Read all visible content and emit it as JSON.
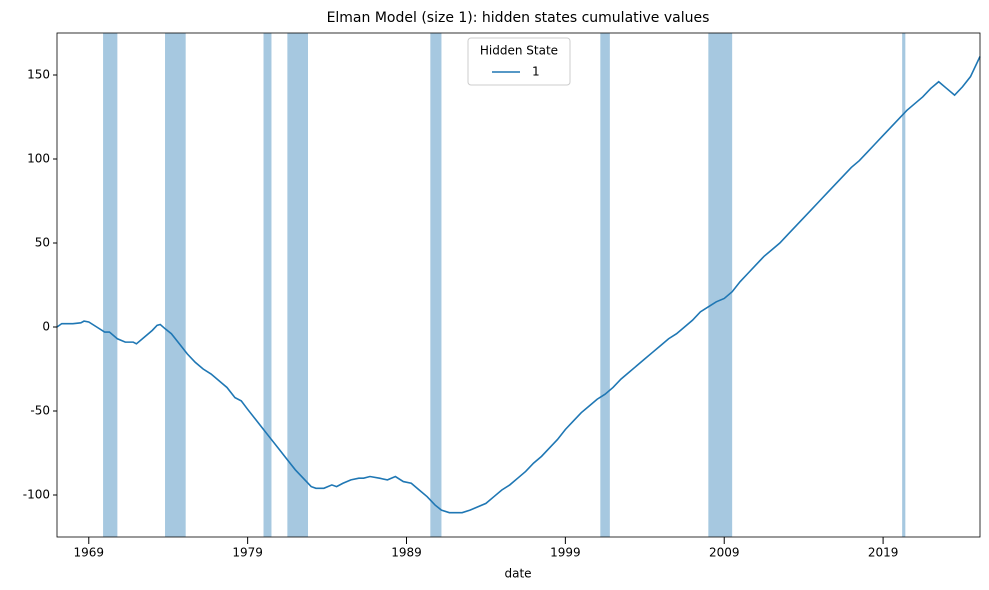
{
  "chart_data": {
    "type": "line",
    "title": "Elman Model (size 1): hidden states cumulative values",
    "x_label": "date",
    "legend_title": "Hidden State",
    "legend": "upper center",
    "x": [
      1967.0,
      1967.3,
      1968.0,
      1968.5,
      1968.7,
      1969.0,
      1969.5,
      1970.0,
      1970.3,
      1970.8,
      1971.3,
      1971.8,
      1972.0,
      1972.5,
      1973.0,
      1973.3,
      1973.5,
      1973.8,
      1974.2,
      1974.7,
      1975.2,
      1975.7,
      1976.2,
      1976.7,
      1977.2,
      1977.7,
      1978.2,
      1978.6,
      1979.0,
      1979.5,
      1980.0,
      1980.5,
      1981.0,
      1981.5,
      1982.0,
      1982.5,
      1983.0,
      1983.3,
      1983.8,
      1984.3,
      1984.6,
      1985.0,
      1985.5,
      1986.0,
      1986.3,
      1986.7,
      1987.3,
      1987.8,
      1988.3,
      1988.8,
      1989.3,
      1989.8,
      1990.3,
      1990.8,
      1991.2,
      1991.7,
      1992.5,
      1993.0,
      1993.5,
      1994.0,
      1994.5,
      1995.0,
      1995.5,
      1996.0,
      1996.5,
      1997.0,
      1997.5,
      1998.0,
      1998.5,
      1999.0,
      1999.5,
      2000.0,
      2000.5,
      2001.0,
      2001.5,
      2002.0,
      2002.5,
      2003.0,
      2003.5,
      2004.0,
      2004.5,
      2005.0,
      2005.5,
      2006.0,
      2006.5,
      2007.0,
      2007.5,
      2008.0,
      2008.5,
      2009.0,
      2009.5,
      2010.0,
      2010.5,
      2011.0,
      2011.5,
      2012.0,
      2012.5,
      2013.0,
      2013.5,
      2014.0,
      2014.5,
      2015.0,
      2015.5,
      2016.0,
      2016.5,
      2017.0,
      2017.5,
      2018.0,
      2018.5,
      2019.0,
      2019.5,
      2020.0,
      2020.5,
      2021.0,
      2021.5,
      2022.0,
      2022.5,
      2023.0,
      2023.5,
      2024.0,
      2024.5,
      2025.1
    ],
    "series": [
      {
        "name": "1",
        "color": "#1f77b4",
        "values": [
          0,
          2,
          2,
          2.5,
          3.5,
          3,
          0,
          -3,
          -3,
          -7,
          -9,
          -9,
          -10,
          -6,
          -2,
          1,
          1.5,
          -1,
          -4,
          -10,
          -16,
          -21,
          -25,
          -28,
          -32,
          -36,
          -42,
          -44,
          -49,
          -55,
          -61,
          -67,
          -73,
          -79,
          -85,
          -90,
          -95,
          -96,
          -96,
          -94,
          -95,
          -93,
          -91,
          -90,
          -90,
          -89,
          -90,
          -91,
          -89,
          -92,
          -93,
          -97,
          -101,
          -106,
          -109,
          -110.5,
          -110.5,
          -109,
          -107,
          -105,
          -101,
          -97,
          -94,
          -90,
          -86,
          -81,
          -77,
          -72,
          -67,
          -61,
          -56,
          -51,
          -47,
          -43,
          -40,
          -36,
          -31,
          -27,
          -23,
          -19,
          -15,
          -11,
          -7,
          -4,
          0,
          4,
          9,
          12,
          15,
          17,
          21,
          27,
          32,
          37,
          42,
          46,
          50,
          55,
          60,
          65,
          70,
          75,
          80,
          85,
          90,
          95,
          99,
          104,
          109,
          114,
          119,
          124,
          129,
          133,
          137,
          142,
          146,
          142,
          138,
          143,
          149,
          161
        ]
      }
    ],
    "shaded_spans": [
      [
        1969.9,
        1970.8
      ],
      [
        1973.8,
        1975.1
      ],
      [
        1980.0,
        1980.5
      ],
      [
        1981.5,
        1982.8
      ],
      [
        1990.5,
        1991.2
      ],
      [
        2001.2,
        2001.8
      ],
      [
        2008.0,
        2009.5
      ],
      [
        2020.2,
        2020.4
      ]
    ],
    "span_color": "#a6c8e0",
    "xlim": [
      1967.0,
      2025.1
    ],
    "xticks": [
      1969,
      1979,
      1989,
      1999,
      2009,
      2019
    ],
    "ylim": [
      -125,
      175
    ],
    "yticks": [
      -100,
      -50,
      0,
      50,
      100,
      150
    ]
  }
}
